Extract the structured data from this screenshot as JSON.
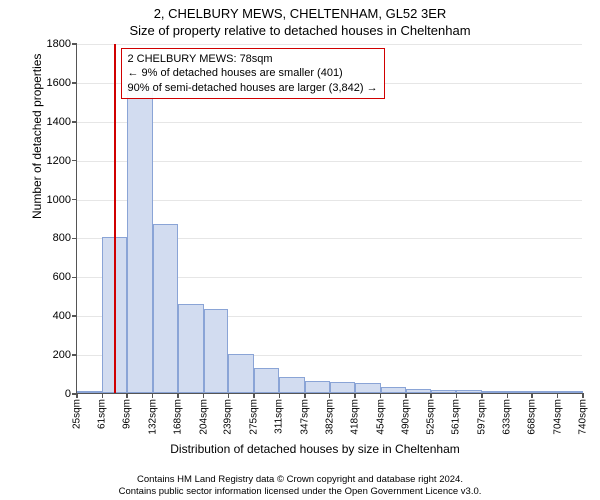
{
  "title_line1": "2, CHELBURY MEWS, CHELTENHAM, GL52 3ER",
  "title_line2": "Size of property relative to detached houses in Cheltenham",
  "ylabel": "Number of detached properties",
  "xlabel": "Distribution of detached houses by size in Cheltenham",
  "footer_line1": "Contains HM Land Registry data © Crown copyright and database right 2024.",
  "footer_line2": "Contains public sector information licensed under the Open Government Licence v3.0.",
  "chart": {
    "type": "histogram",
    "background_color": "#ffffff",
    "grid_color": "#e6e6e6",
    "axis_color": "#555555",
    "bar_fill": "#d2dcf0",
    "bar_border": "#8aa4d6",
    "ylim": [
      0,
      1800
    ],
    "ytick_step": 200,
    "yticks": [
      0,
      200,
      400,
      600,
      800,
      1000,
      1200,
      1400,
      1600,
      1800
    ],
    "xticks": [
      "25sqm",
      "61sqm",
      "96sqm",
      "132sqm",
      "168sqm",
      "204sqm",
      "239sqm",
      "275sqm",
      "311sqm",
      "347sqm",
      "382sqm",
      "418sqm",
      "454sqm",
      "490sqm",
      "525sqm",
      "561sqm",
      "597sqm",
      "633sqm",
      "668sqm",
      "704sqm",
      "740sqm"
    ],
    "xtick_values": [
      25,
      61,
      96,
      132,
      168,
      204,
      239,
      275,
      311,
      347,
      382,
      418,
      454,
      490,
      525,
      561,
      597,
      633,
      668,
      704,
      740
    ],
    "xlim": [
      25,
      740
    ],
    "bin_edges": [
      25,
      61,
      96,
      132,
      168,
      204,
      239,
      275,
      311,
      347,
      382,
      418,
      454,
      490,
      525,
      561,
      597,
      633,
      668,
      704,
      740
    ],
    "bin_counts": [
      10,
      800,
      1570,
      870,
      460,
      430,
      200,
      130,
      80,
      60,
      55,
      50,
      30,
      20,
      15,
      15,
      10,
      8,
      5,
      5
    ],
    "annotation": {
      "x_value": 78,
      "line_color": "#d00000",
      "line_width": 2,
      "box_border": "#d00000",
      "lines": [
        "2 CHELBURY MEWS: 78sqm",
        "← 9% of detached houses are smaller (401)",
        "90% of semi-detached houses are larger (3,842) →"
      ]
    },
    "label_fontsize": 12,
    "tick_fontsize": 11,
    "xtick_fontsize": 10,
    "title_fontsize": 13
  }
}
